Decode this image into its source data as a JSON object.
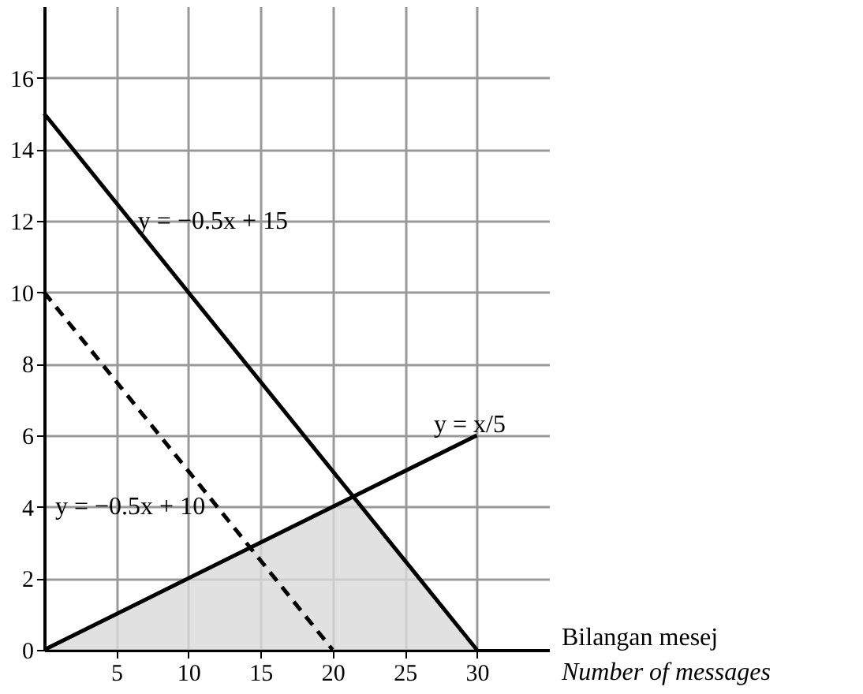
{
  "chart_data": {
    "type": "line",
    "xlabel": "Bilangan mesej\nNumber of messages",
    "xlim": [
      0,
      35
    ],
    "ylim": [
      0,
      18
    ],
    "xticks": [
      5,
      10,
      15,
      20,
      25,
      30
    ],
    "yticks": [
      0,
      2,
      4,
      6,
      8,
      10,
      12,
      14,
      16
    ],
    "grid": true,
    "series": [
      {
        "type": "area",
        "color": "#d9d9d9",
        "x": [
          0,
          21.4,
          30
        ],
        "values": [
          0,
          4.3,
          0
        ]
      },
      {
        "color": "#000000",
        "line_style": "solid",
        "x": [
          0,
          30
        ],
        "values": [
          15,
          0
        ]
      },
      {
        "color": "#000000",
        "line_style": "dashed",
        "x": [
          0,
          20
        ],
        "values": [
          10,
          0
        ]
      },
      {
        "color": "#000000",
        "line_style": "solid",
        "x": [
          0,
          30
        ],
        "values": [
          0,
          6
        ]
      }
    ],
    "annotations": [
      {
        "text": "y = −0.5x  + 15",
        "x": 6.5,
        "y": 12
      },
      "y = −0.5x + 10",
      "y = x/5"
    ]
  }
}
